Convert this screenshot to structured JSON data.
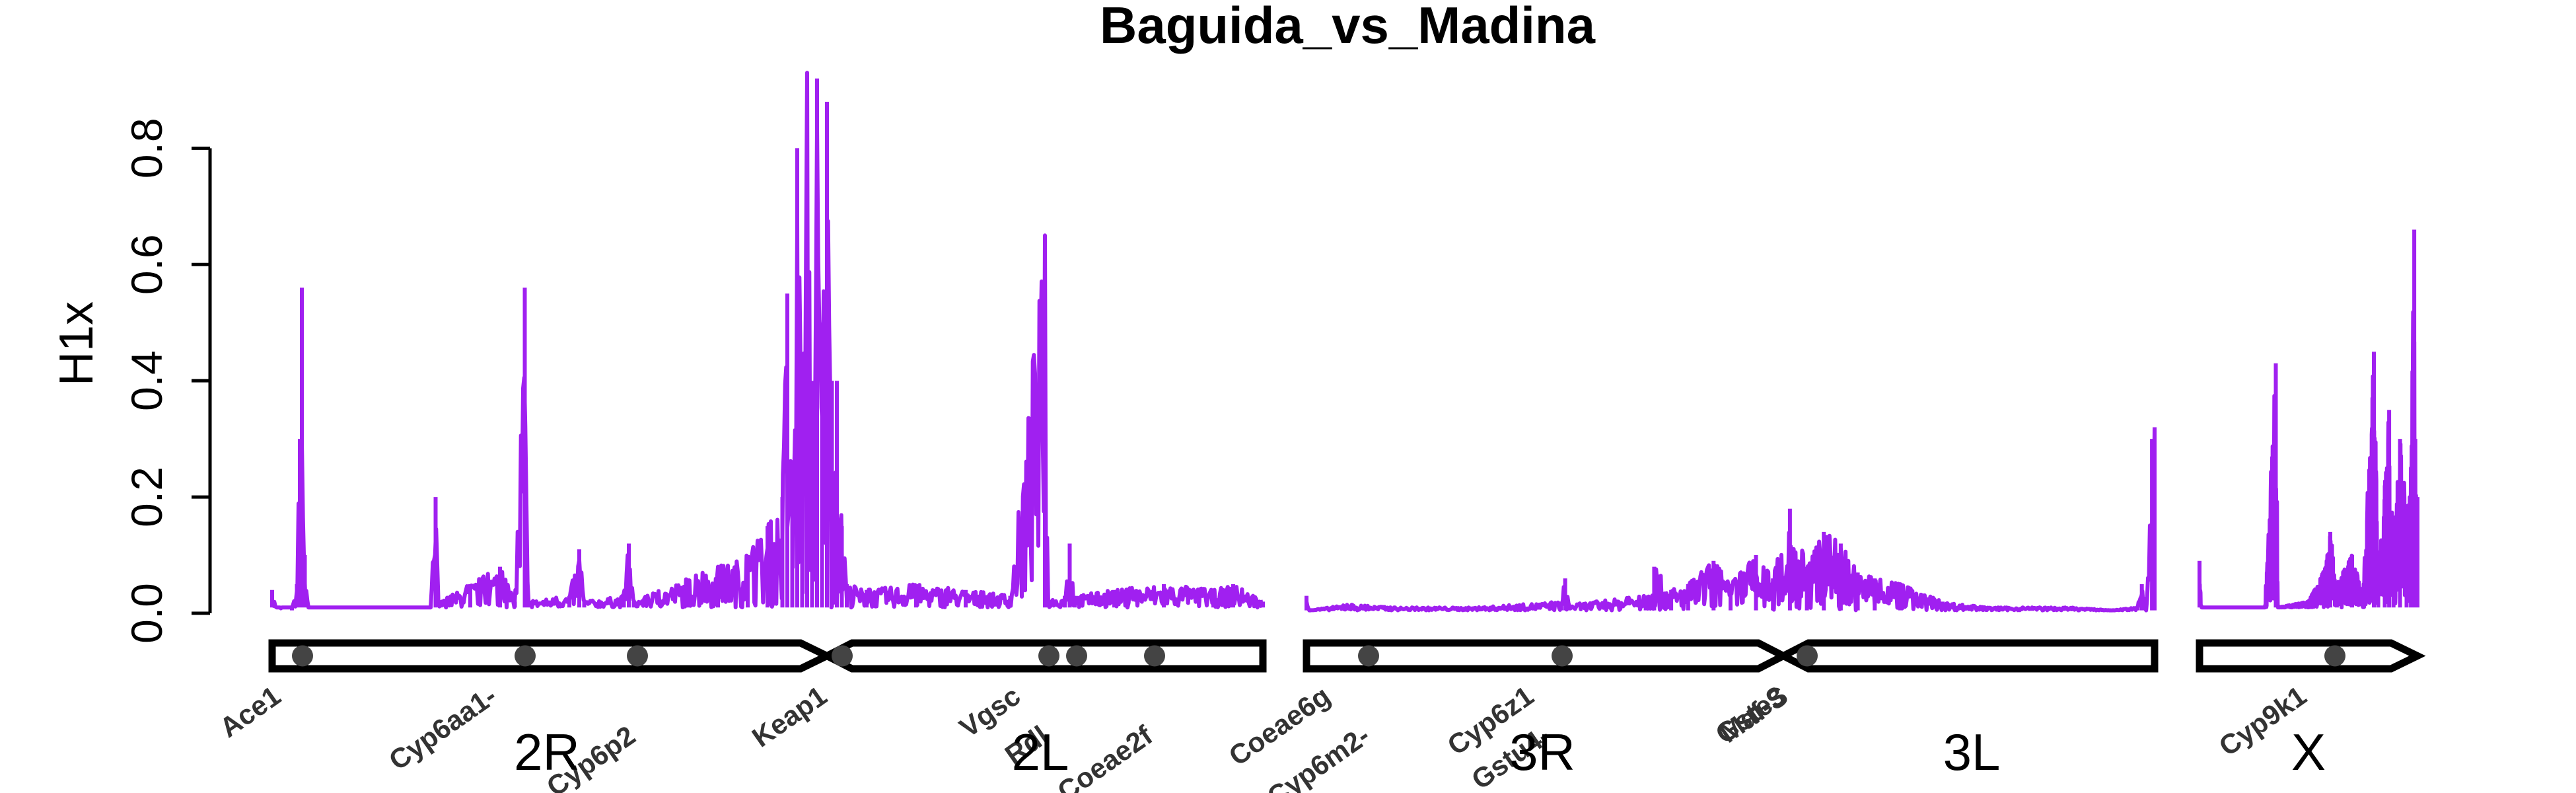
{
  "chart_data": {
    "type": "line",
    "title": "Baguida_vs_Madina",
    "ylabel": "H1x",
    "xlabel": "",
    "ylim": [
      0,
      0.93
    ],
    "yticks": [
      "0.0",
      "0.2",
      "0.4",
      "0.6",
      "0.8"
    ],
    "yticks_values": [
      0,
      0.2,
      0.4,
      0.6,
      0.8
    ],
    "series": [
      {
        "color": "#a020f0",
        "segments": [
          {
            "chromosome": "2",
            "baseline": 0.01,
            "points": [
              [
                0.0,
                0.04
              ],
              [
                0.004,
                0.01
              ],
              [
                0.02,
                0.005
              ],
              [
                0.025,
                0.05
              ],
              [
                0.028,
                0.3
              ],
              [
                0.03,
                0.56
              ],
              [
                0.033,
                0.1
              ],
              [
                0.036,
                0.01
              ],
              [
                0.16,
                0.01
              ],
              [
                0.165,
                0.2
              ],
              [
                0.168,
                0.01
              ],
              [
                0.17,
                0.02
              ],
              [
                0.2,
                0.05
              ],
              [
                0.23,
                0.08
              ],
              [
                0.245,
                0.02
              ],
              [
                0.255,
                0.56
              ],
              [
                0.258,
                0.02
              ],
              [
                0.3,
                0.03
              ],
              [
                0.31,
                0.11
              ],
              [
                0.315,
                0.02
              ],
              [
                0.355,
                0.03
              ],
              [
                0.36,
                0.12
              ],
              [
                0.365,
                0.02
              ],
              [
                0.42,
                0.06
              ],
              [
                0.45,
                0.08
              ],
              [
                0.48,
                0.1
              ],
              [
                0.5,
                0.15
              ],
              [
                0.515,
                0.2
              ],
              [
                0.52,
                0.55
              ],
              [
                0.525,
                0.2
              ],
              [
                0.53,
                0.8
              ],
              [
                0.535,
                0.3
              ],
              [
                0.54,
                0.93
              ],
              [
                0.545,
                0.4
              ],
              [
                0.55,
                0.92
              ],
              [
                0.555,
                0.5
              ],
              [
                0.56,
                0.88
              ],
              [
                0.565,
                0.4
              ],
              [
                0.57,
                0.4
              ],
              [
                0.575,
                0.15
              ],
              [
                0.58,
                0.05
              ],
              [
                0.6,
                0.04
              ],
              [
                0.65,
                0.05
              ],
              [
                0.7,
                0.04
              ],
              [
                0.745,
                0.03
              ],
              [
                0.78,
                0.65
              ],
              [
                0.783,
                0.02
              ],
              [
                0.8,
                0.03
              ],
              [
                0.805,
                0.12
              ],
              [
                0.81,
                0.03
              ],
              [
                0.85,
                0.04
              ],
              [
                0.9,
                0.05
              ],
              [
                0.95,
                0.04
              ],
              [
                0.97,
                0.05
              ],
              [
                1.0,
                0.02
              ]
            ]
          },
          {
            "chromosome": "3",
            "baseline": 0.005,
            "points": [
              [
                0.0,
                0.03
              ],
              [
                0.003,
                0.005
              ],
              [
                0.05,
                0.015
              ],
              [
                0.1,
                0.01
              ],
              [
                0.2,
                0.01
              ],
              [
                0.3,
                0.02
              ],
              [
                0.305,
                0.06
              ],
              [
                0.31,
                0.015
              ],
              [
                0.4,
                0.03
              ],
              [
                0.41,
                0.08
              ],
              [
                0.43,
                0.04
              ],
              [
                0.45,
                0.05
              ],
              [
                0.48,
                0.09
              ],
              [
                0.5,
                0.05
              ],
              [
                0.53,
                0.1
              ],
              [
                0.55,
                0.06
              ],
              [
                0.57,
                0.18
              ],
              [
                0.59,
                0.08
              ],
              [
                0.61,
                0.14
              ],
              [
                0.63,
                0.12
              ],
              [
                0.65,
                0.07
              ],
              [
                0.67,
                0.06
              ],
              [
                0.7,
                0.05
              ],
              [
                0.75,
                0.02
              ],
              [
                0.8,
                0.01
              ],
              [
                0.9,
                0.01
              ],
              [
                0.95,
                0.005
              ],
              [
                0.98,
                0.01
              ],
              [
                0.985,
                0.05
              ],
              [
                0.99,
                0.005
              ],
              [
                0.997,
                0.3
              ],
              [
                1.0,
                0.32
              ]
            ]
          },
          {
            "chromosome": "X",
            "baseline": 0.01,
            "points": [
              [
                0.0,
                0.09
              ],
              [
                0.01,
                0.01
              ],
              [
                0.3,
                0.01
              ],
              [
                0.35,
                0.43
              ],
              [
                0.36,
                0.01
              ],
              [
                0.5,
                0.02
              ],
              [
                0.58,
                0.08
              ],
              [
                0.6,
                0.14
              ],
              [
                0.63,
                0.05
              ],
              [
                0.7,
                0.1
              ],
              [
                0.75,
                0.03
              ],
              [
                0.8,
                0.45
              ],
              [
                0.82,
                0.05
              ],
              [
                0.85,
                0.22
              ],
              [
                0.87,
                0.35
              ],
              [
                0.89,
                0.1
              ],
              [
                0.92,
                0.3
              ],
              [
                0.95,
                0.18
              ],
              [
                0.97,
                0.25
              ],
              [
                0.985,
                0.66
              ],
              [
                0.99,
                0.3
              ],
              [
                1.0,
                0.2
              ]
            ]
          }
        ]
      }
    ],
    "arm_labels": [
      "2R",
      "2L",
      "3R",
      "3L",
      "X"
    ],
    "gene_labels": [
      {
        "label": "Ace1",
        "x": 0.03
      },
      {
        "label": "Cyp6aa1-",
        "x": 0.255
      },
      {
        "label": "Cyp6p2",
        "x": 0.26
      },
      {
        "label": "Keap1",
        "x": 0.37
      },
      {
        "label": "Vgsc",
        "x": 0.575
      },
      {
        "label": "Rdl",
        "x": 0.78
      },
      {
        "label": "Coeae2f",
        "x": 0.81
      },
      {
        "label": "Coeae6g",
        "x": 0.89
      },
      {
        "label": "Cyp6m2-",
        "x": 0.07
      },
      {
        "label": "Cyp6z1",
        "x": 0.075
      },
      {
        "label": "Gstu4-",
        "x": 0.3
      },
      {
        "label": "Gste3",
        "x": 0.305
      },
      {
        "label": "Maf-S",
        "x": 0.59
      },
      {
        "label": "Cyp9k1",
        "x": 0.6
      }
    ],
    "grid": false,
    "legend": "none"
  }
}
